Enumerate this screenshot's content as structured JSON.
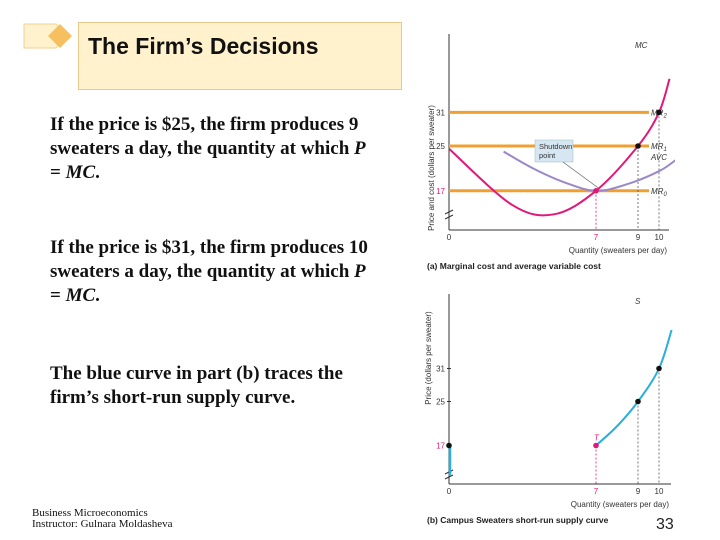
{
  "slide": {
    "title": "The Firm’s Decisions",
    "paragraphs": [
      {
        "pre": "If the price is $25, the firm produces 9 sweaters a day, the quantity at which ",
        "em1": "P",
        "mid": " = ",
        "em2": "MC",
        "post": "."
      },
      {
        "pre": "If the price is $31, the firm produces 10 sweaters a day, the quantity at which ",
        "em1": "P",
        "mid": " = ",
        "em2": "MC",
        "post": "."
      },
      {
        "text": "The blue curve in part (b) traces the firm’s short-run supply curve."
      }
    ],
    "footer_line1": "Business Microeconomics",
    "footer_line2": "Instructor: Gulnara Moldasheva",
    "page_number": "33"
  },
  "colors": {
    "title_bg": "#fff2cc",
    "orange_lines": "#f0a030",
    "mc_curve": "#e0187a",
    "avc_curve": "#9a88c8",
    "supply_curve": "#29aee0",
    "shutdown_label_bg": "#d6e6f2"
  },
  "chart_data": [
    {
      "type": "line",
      "caption": "(a) Marginal cost and average variable cost",
      "ylabel": "Price and cost (dollars per sweater)",
      "xlabel": "Quantity (sweaters per day)",
      "yticks": [
        "17",
        "25",
        "31"
      ],
      "xticks": [
        "0",
        "7",
        "9",
        "10"
      ],
      "curve_labels": [
        "MC",
        "AVC"
      ],
      "price_lines": [
        {
          "name": "MR2",
          "base": "MR",
          "sub": "2",
          "y": 31
        },
        {
          "name": "MR1",
          "base": "MR",
          "sub": "1",
          "y": 25
        },
        {
          "name": "MR0",
          "base": "MR",
          "sub": "0",
          "y": 17
        }
      ],
      "annotation": "Shutdown point",
      "series": [
        {
          "name": "MC",
          "points": [
            [
              0,
              24.5
            ],
            [
              3,
              14.5
            ],
            [
              5,
              12.8
            ],
            [
              7,
              17
            ],
            [
              9,
              25
            ],
            [
              10,
              31
            ],
            [
              10.5,
              37
            ]
          ]
        },
        {
          "name": "AVC",
          "points": [
            [
              2.6,
              24
            ],
            [
              4,
              21
            ],
            [
              5.5,
              18.5
            ],
            [
              7,
              17
            ],
            [
              8.5,
              18.2
            ],
            [
              10,
              20.5
            ],
            [
              10.8,
              22.5
            ]
          ]
        }
      ],
      "marked_points": [
        {
          "x": 7,
          "y": 17
        },
        {
          "x": 9,
          "y": 25
        },
        {
          "x": 10,
          "y": 31
        }
      ]
    },
    {
      "type": "line",
      "caption": "(b) Campus Sweaters short-run supply curve",
      "ylabel": "Price (dollars per sweater)",
      "xlabel": "Quantity (sweaters per day)",
      "yticks": [
        "17",
        "25",
        "31"
      ],
      "xticks": [
        "0",
        "7",
        "9",
        "10"
      ],
      "curve_labels": [
        "S"
      ],
      "annotation": "T",
      "series": [
        {
          "name": "S",
          "points": [
            [
              7,
              17
            ],
            [
              8,
              20.5
            ],
            [
              9,
              25
            ],
            [
              10,
              31
            ],
            [
              10.6,
              38
            ]
          ]
        },
        {
          "name": "S-zero",
          "points": [
            [
              0,
              17
            ],
            [
              0,
              11.5
            ]
          ]
        }
      ],
      "marked_points": [
        {
          "x": 0,
          "y": 17
        },
        {
          "x": 7,
          "y": 17
        },
        {
          "x": 9,
          "y": 25
        },
        {
          "x": 10,
          "y": 31
        }
      ]
    }
  ]
}
